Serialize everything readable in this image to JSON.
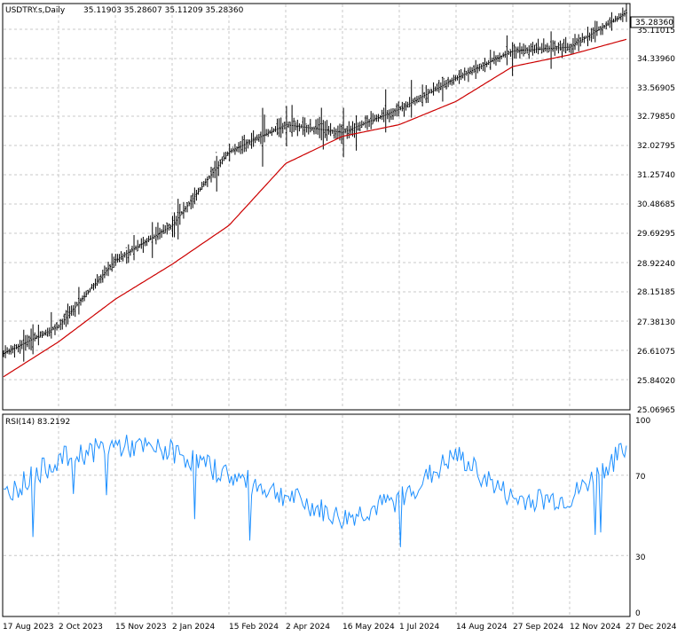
{
  "header": {
    "symbol": "USDTRY.s,Daily",
    "ohlc": "35.11903 35.28607 35.11209 35.28360"
  },
  "price_panel": {
    "current_price_label": "35.28360",
    "y_ticks": [
      "35.11015",
      "34.33960",
      "33.56905",
      "32.79850",
      "32.02795",
      "31.25740",
      "30.48685",
      "29.69295",
      "28.92240",
      "28.15185",
      "27.38130",
      "26.61075",
      "25.84020",
      "25.06965"
    ]
  },
  "rsi_panel": {
    "title": "RSI(14) 83.2192",
    "y_ticks": [
      "100",
      "70",
      "30",
      "0"
    ]
  },
  "x_axis": {
    "date_labels": [
      "17 Aug 2023",
      "2 Oct 2023",
      "15 Nov 2023",
      "2 Jan 2024",
      "15 Feb 2024",
      "2 Apr 2024",
      "16 May 2024",
      "1 Jul 2024",
      "14 Aug 2024",
      "27 Sep 2024",
      "12 Nov 2024",
      "27 Dec 2024"
    ]
  },
  "colors": {
    "background": "#ffffff",
    "grid": "#c8c8c8",
    "bars": "#000000",
    "moving_average": "#cc0000",
    "rsi_line": "#1e90ff",
    "current_price_box": "#ffffff"
  },
  "chart_data": [
    {
      "type": "line",
      "description_type": "ohlc-bars",
      "title": "USDTRY.s,Daily",
      "ylim": [
        25.06965,
        35.5
      ],
      "x": [
        "17 Aug 2023",
        "2 Oct 2023",
        "15 Nov 2023",
        "2 Jan 2024",
        "15 Feb 2024",
        "2 Apr 2024",
        "16 May 2024",
        "1 Jul 2024",
        "14 Aug 2024",
        "27 Sep 2024",
        "12 Nov 2024",
        "27 Dec 2024"
      ],
      "series": [
        {
          "values": [
            26.5,
            27.2,
            28.9,
            29.8,
            31.7,
            32.4,
            32.2,
            32.8,
            33.6,
            34.3,
            34.4,
            35.28
          ]
        },
        {
          "values": [
            25.9,
            26.8,
            27.9,
            28.8,
            29.8,
            31.4,
            32.1,
            32.4,
            33.0,
            33.9,
            34.2,
            34.6
          ]
        }
      ],
      "grid": true
    },
    {
      "type": "line",
      "title": "RSI(14) 83.2192",
      "ylim": [
        0,
        100
      ],
      "x": [
        "17 Aug 2023",
        "2 Oct 2023",
        "15 Nov 2023",
        "2 Jan 2024",
        "15 Feb 2024",
        "2 Apr 2024",
        "16 May 2024",
        "1 Jul 2024",
        "14 Aug 2024",
        "27 Sep 2024",
        "12 Nov 2024",
        "27 Dec 2024"
      ],
      "series": [
        {
          "values": [
            60,
            78,
            85,
            82,
            70,
            60,
            48,
            58,
            80,
            58,
            58,
            83.2
          ]
        }
      ],
      "reference_levels": [
        70,
        30
      ],
      "grid": true
    }
  ]
}
